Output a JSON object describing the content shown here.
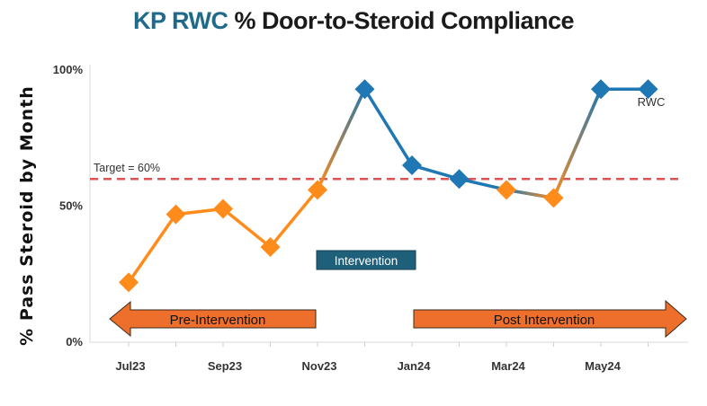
{
  "header": {
    "title_brand": "KP RWC",
    "title_rest": " % Door-to-Steroid Compliance"
  },
  "colors": {
    "pre": "#ff8c1a",
    "post": "#1f77b4",
    "target": "#e05252",
    "intervention_box": "#1e5f7a",
    "arrow_fill": "#ee6e2c",
    "brand": "#1f6a8a"
  },
  "chart_data": {
    "type": "line",
    "title": "KP RWC % Door-to-Steroid Compliance",
    "xlabel": "",
    "ylabel": "% Pass Steroid by Month",
    "ylim": [
      0,
      100
    ],
    "yticks": [
      "0%",
      "50%",
      "100%"
    ],
    "x": [
      "Jul23",
      "Aug23",
      "Sep23",
      "Oct23",
      "Nov23",
      "Dec23",
      "Jan24",
      "Feb24",
      "Mar24",
      "Apr24",
      "May24",
      "Jun24"
    ],
    "xtick_labels": [
      "Jul23",
      "Sep23",
      "Nov23",
      "Jan24",
      "Mar24",
      "May24"
    ],
    "series": [
      {
        "name": "RWC",
        "values": [
          22,
          47,
          49,
          35,
          56,
          93,
          65,
          60,
          56,
          53,
          93,
          93
        ]
      }
    ],
    "pre_intervention_count": 5,
    "target": {
      "value": 60,
      "label": "Target = 60%"
    },
    "annotations": {
      "intervention": "Intervention",
      "pre": "Pre-Intervention",
      "post": "Post Intervention",
      "series_label": "RWC"
    }
  }
}
